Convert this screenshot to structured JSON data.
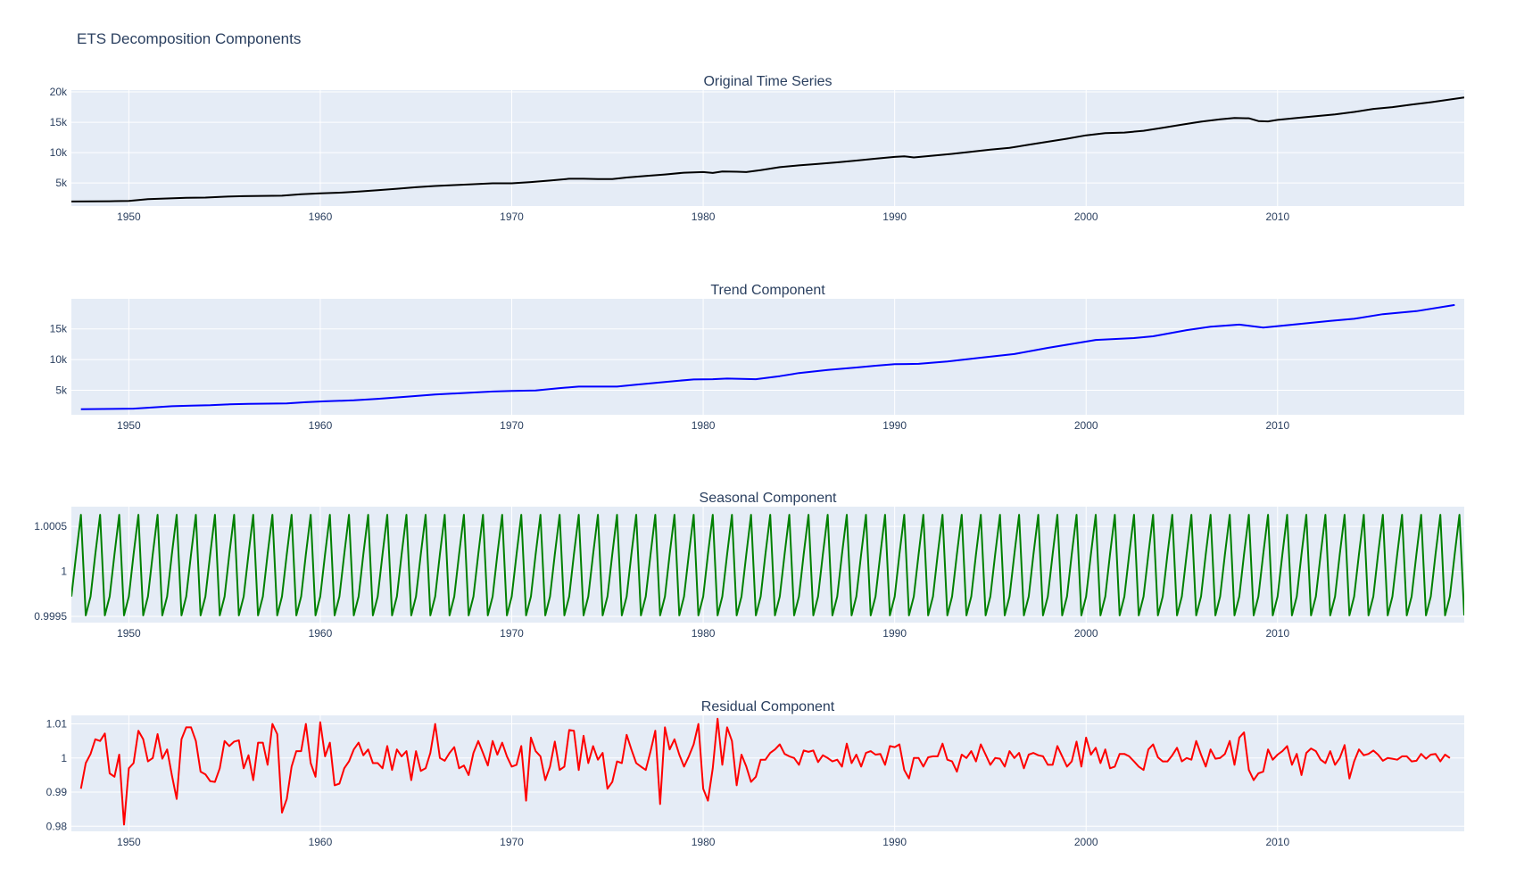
{
  "figure": {
    "title": "ETS Decomposition Components",
    "plot_bg": "#e5ecf6",
    "grid_color": "#ffffff",
    "text_color": "#2a3f5f"
  },
  "chart_data": [
    {
      "type": "line",
      "title": "Original Time Series",
      "xlabel": "",
      "ylabel": "",
      "color": "#000000",
      "xlim": [
        1947.0,
        2019.75
      ],
      "ylim": [
        1200,
        20300
      ],
      "x_ticks": [
        1950,
        1960,
        1970,
        1980,
        1990,
        2000,
        2010
      ],
      "x_tick_labels": [
        "1950",
        "1960",
        "1970",
        "1980",
        "1990",
        "2000",
        "2010"
      ],
      "y_ticks": [
        5000,
        10000,
        15000,
        20000
      ],
      "y_tick_labels": [
        "5k",
        "10k",
        "15k",
        "20k"
      ],
      "grid": true,
      "x": [
        1947.0,
        1948.0,
        1949.0,
        1950.0,
        1951.0,
        1952.0,
        1953.0,
        1954.0,
        1955.0,
        1956.0,
        1957.0,
        1958.0,
        1959.0,
        1960.0,
        1961.0,
        1962.0,
        1963.0,
        1964.0,
        1965.0,
        1966.0,
        1967.0,
        1968.0,
        1969.0,
        1970.0,
        1971.0,
        1972.0,
        1973.0,
        1973.75,
        1974.5,
        1975.25,
        1976.0,
        1977.0,
        1978.0,
        1979.0,
        1980.0,
        1980.5,
        1981.0,
        1981.75,
        1982.25,
        1983.0,
        1984.0,
        1985.0,
        1986.0,
        1987.0,
        1988.0,
        1989.0,
        1990.0,
        1990.5,
        1991.0,
        1992.0,
        1993.0,
        1994.0,
        1995.0,
        1996.0,
        1997.0,
        1998.0,
        1999.0,
        2000.0,
        2001.0,
        2002.0,
        2003.0,
        2004.0,
        2005.0,
        2006.0,
        2007.0,
        2007.75,
        2008.5,
        2009.0,
        2009.5,
        2010.0,
        2011.0,
        2012.0,
        2013.0,
        2014.0,
        2015.0,
        2016.0,
        2017.0,
        2018.0,
        2019.75
      ],
      "y": [
        1950,
        1970,
        2000,
        2050,
        2350,
        2450,
        2550,
        2600,
        2750,
        2830,
        2880,
        2900,
        3150,
        3300,
        3400,
        3600,
        3800,
        4050,
        4300,
        4500,
        4650,
        4800,
        4950,
        4950,
        5150,
        5400,
        5700,
        5700,
        5650,
        5650,
        5900,
        6150,
        6400,
        6700,
        6800,
        6650,
        6900,
        6850,
        6800,
        7100,
        7600,
        7900,
        8150,
        8400,
        8700,
        9000,
        9300,
        9400,
        9200,
        9500,
        9800,
        10150,
        10500,
        10800,
        11300,
        11800,
        12300,
        12850,
        13200,
        13300,
        13600,
        14100,
        14600,
        15100,
        15500,
        15700,
        15650,
        15200,
        15150,
        15400,
        15700,
        16000,
        16300,
        16700,
        17200,
        17500,
        17900,
        18300,
        19100
      ]
    },
    {
      "type": "line",
      "title": "Trend Component",
      "xlabel": "",
      "ylabel": "",
      "color": "#0000ff",
      "xlim": [
        1947.0,
        2019.75
      ],
      "ylim": [
        1000,
        19900
      ],
      "x_ticks": [
        1950,
        1960,
        1970,
        1980,
        1990,
        2000,
        2010
      ],
      "x_tick_labels": [
        "1950",
        "1960",
        "1970",
        "1980",
        "1990",
        "2000",
        "2010"
      ],
      "y_ticks": [
        5000,
        10000,
        15000
      ],
      "y_tick_labels": [
        "5k",
        "10k",
        "15k"
      ],
      "grid": true,
      "x": [
        1947.5,
        1950.25,
        1951.25,
        1952.25,
        1953.25,
        1954.25,
        1955.25,
        1956.25,
        1957.25,
        1958.25,
        1959.25,
        1960.25,
        1961.75,
        1963.0,
        1964.5,
        1966.0,
        1967.5,
        1969.0,
        1970.0,
        1971.25,
        1972.5,
        1973.5,
        1974.5,
        1975.5,
        1976.5,
        1977.5,
        1978.5,
        1979.5,
        1980.5,
        1981.25,
        1982.0,
        1982.75,
        1984.0,
        1985.0,
        1986.5,
        1988.0,
        1989.0,
        1990.0,
        1991.25,
        1992.75,
        1994.5,
        1996.25,
        1998.0,
        2000.5,
        2002.5,
        2003.5,
        2005.25,
        2006.5,
        2008.0,
        2009.25,
        2011.0,
        2012.75,
        2014.0,
        2015.5,
        2017.25,
        2019.25
      ],
      "y": [
        1900,
        2000,
        2200,
        2400,
        2500,
        2550,
        2700,
        2780,
        2820,
        2850,
        3050,
        3200,
        3350,
        3600,
        3950,
        4300,
        4550,
        4800,
        4900,
        4950,
        5350,
        5600,
        5600,
        5600,
        5900,
        6200,
        6500,
        6750,
        6800,
        6900,
        6850,
        6800,
        7300,
        7800,
        8300,
        8700,
        9000,
        9250,
        9300,
        9700,
        10300,
        10900,
        11900,
        13200,
        13500,
        13800,
        14800,
        15350,
        15700,
        15200,
        15750,
        16300,
        16650,
        17400,
        17900,
        18900
      ]
    },
    {
      "type": "line",
      "title": "Seasonal Component",
      "xlabel": "",
      "ylabel": "",
      "color": "#008000",
      "xlim": [
        1947.0,
        2019.75
      ],
      "ylim": [
        0.99943,
        1.00072
      ],
      "x_ticks": [
        1950,
        1960,
        1970,
        1980,
        1990,
        2000,
        2010
      ],
      "x_tick_labels": [
        "1950",
        "1960",
        "1970",
        "1980",
        "1990",
        "2000",
        "2010"
      ],
      "y_ticks": [
        0.9995,
        1.0,
        1.0005
      ],
      "y_tick_labels": [
        "0.9995",
        "1",
        "1.0005"
      ],
      "grid": true,
      "quarterly_cycle": [
        0.99972,
        1.00019,
        1.00063,
        0.99951
      ],
      "cycle_start": 1947.0,
      "period_years": 1,
      "samples_per_period": 4
    },
    {
      "type": "line",
      "title": "Residual Component",
      "xlabel": "",
      "ylabel": "",
      "color": "#ff0000",
      "xlim": [
        1947.0,
        2019.75
      ],
      "ylim": [
        0.9785,
        1.0125
      ],
      "x_ticks": [
        1950,
        1960,
        1970,
        1980,
        1990,
        2000,
        2010
      ],
      "x_tick_labels": [
        "1950",
        "1960",
        "1970",
        "1980",
        "1990",
        "2000",
        "2010"
      ],
      "y_ticks": [
        0.98,
        0.99,
        1.0,
        1.01
      ],
      "y_tick_labels": [
        "0.98",
        "0.99",
        "1",
        "1.01"
      ],
      "grid": true,
      "x_start": 1947.5,
      "x_step": 0.25,
      "y": [
        0.991,
        0.9985,
        1.0012,
        1.0055,
        1.005,
        1.0072,
        0.9955,
        0.9945,
        1.001,
        0.9805,
        0.997,
        0.9985,
        1.008,
        1.0055,
        0.999,
        1.0,
        1.007,
        0.9998,
        1.0025,
        0.995,
        0.988,
        1.0055,
        1.009,
        1.009,
        1.005,
        0.996,
        0.9952,
        0.9932,
        0.993,
        0.997,
        1.005,
        1.0035,
        1.0048,
        1.0052,
        0.997,
        1.0008,
        0.9935,
        1.0045,
        1.0045,
        0.998,
        1.01,
        1.007,
        0.984,
        0.988,
        0.9975,
        1.002,
        1.002,
        1.01,
        0.9985,
        0.9945,
        1.0105,
        1.0005,
        1.0045,
        0.992,
        0.9925,
        0.997,
        0.999,
        1.0025,
        1.0045,
        1.0008,
        1.0025,
        0.9985,
        0.9985,
        0.997,
        1.0035,
        0.9965,
        1.0025,
        1.0005,
        1.002,
        0.9935,
        1.002,
        0.9962,
        0.997,
        1.0015,
        1.01,
        1.0,
        0.9992,
        1.0015,
        1.0032,
        0.997,
        0.9978,
        0.995,
        1.0015,
        1.005,
        1.0015,
        0.9978,
        1.005,
        1.001,
        1.0045,
        1.0005,
        0.9975,
        0.998,
        1.0035,
        0.9875,
        1.006,
        1.002,
        1.0005,
        0.9935,
        0.9975,
        1.0048,
        0.9965,
        0.9975,
        1.0082,
        1.008,
        0.9965,
        1.0065,
        0.9985,
        1.0035,
        0.9995,
        1.0015,
        0.991,
        0.993,
        0.999,
        0.9985,
        1.0068,
        1.0025,
        0.9985,
        0.9975,
        0.9965,
        1.002,
        1.008,
        0.9865,
        1.009,
        1.0025,
        1.0055,
        1.001,
        0.9975,
        1.0005,
        1.004,
        1.01,
        0.991,
        0.9875,
        0.997,
        1.0115,
        0.998,
        1.009,
        1.005,
        0.992,
        1.001,
        0.9975,
        0.993,
        0.9945,
        0.9995,
        0.9995,
        1.0015,
        1.0025,
        1.004,
        1.0012,
        1.0005,
        1.0,
        0.998,
        1.0022,
        1.0018,
        1.0022,
        0.9988,
        1.0008,
        1.0,
        0.999,
        0.9995,
        0.9975,
        1.0042,
        0.9985,
        1.001,
        0.9975,
        1.0015,
        1.002,
        1.001,
        1.0012,
        0.998,
        1.0035,
        1.0032,
        1.004,
        0.9965,
        0.994,
        1.0,
        1.0,
        0.9975,
        1.0002,
        1.0005,
        1.0005,
        1.0042,
        0.9995,
        0.999,
        0.996,
        1.001,
        1.0,
        1.002,
        0.999,
        1.004,
        1.001,
        0.998,
        1.0,
        0.9998,
        0.9975,
        1.002,
        1.0,
        1.0015,
        0.997,
        1.001,
        1.0015,
        1.0008,
        1.0005,
        0.998,
        0.998,
        1.0035,
        1.0005,
        0.9975,
        0.999,
        1.0048,
        0.9975,
        1.006,
        1.001,
        1.003,
        0.9985,
        1.0025,
        0.997,
        0.9975,
        1.0012,
        1.0012,
        1.0005,
        0.999,
        0.9975,
        0.9965,
        1.0025,
        1.004,
        1.0002,
        0.999,
        0.999,
        1.0008,
        1.003,
        0.999,
        1.0,
        0.9995,
        1.005,
        1.001,
        0.9975,
        1.0025,
        0.9998,
        1.0,
        1.0012,
        1.005,
        0.998,
        1.006,
        1.0075,
        0.9965,
        0.9935,
        0.9955,
        0.996,
        1.0025,
        0.9995,
        1.001,
        1.002,
        1.0035,
        0.998,
        1.0012,
        0.995,
        1.0015,
        1.0028,
        1.002,
        0.9995,
        0.9985,
        1.002,
        0.998,
        1.0,
        1.0038,
        0.994,
        0.999,
        1.0025,
        1.0008,
        1.0012,
        1.0022,
        1.001,
        0.9992,
        1.0,
        0.9998,
        0.9995,
        1.0005,
        1.0005,
        0.999,
        0.9992,
        1.0012,
        0.9998,
        1.001,
        1.0012,
        0.999,
        1.001,
        1.0
      ]
    }
  ]
}
